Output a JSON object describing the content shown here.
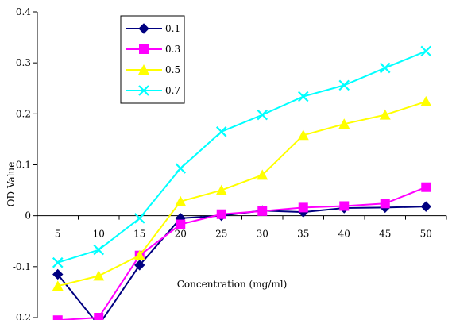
{
  "chart_data": {
    "type": "line",
    "title": "",
    "xlabel": "Concentration (mg/ml)",
    "ylabel": "OD Value",
    "x": [
      5,
      10,
      15,
      20,
      25,
      30,
      35,
      40,
      45,
      50
    ],
    "ylim": [
      -0.2,
      0.4
    ],
    "yticks": [
      "0.4",
      "0.3",
      "0.2",
      "0.1",
      "0",
      "-0.1",
      "-0.2"
    ],
    "ytick_values": [
      0.4,
      0.3,
      0.2,
      0.1,
      0,
      -0.1,
      -0.2
    ],
    "xticks": [
      "5",
      "10",
      "15",
      "20",
      "25",
      "30",
      "35",
      "40",
      "45",
      "50"
    ],
    "grid": false,
    "legend_position": "top-left",
    "series": [
      {
        "name": "0.1",
        "color": "#000080",
        "marker": "diamond",
        "values": [
          -0.115,
          -0.215,
          -0.097,
          -0.005,
          0.0,
          0.01,
          0.007,
          0.015,
          0.016,
          0.018
        ]
      },
      {
        "name": "0.3",
        "color": "#ff00ff",
        "marker": "square",
        "values": [
          -0.205,
          -0.2,
          -0.078,
          -0.017,
          0.003,
          0.009,
          0.016,
          0.019,
          0.024,
          0.056
        ]
      },
      {
        "name": "0.5",
        "color": "#ffff00",
        "marker": "triangle",
        "values": [
          -0.138,
          -0.118,
          -0.078,
          0.028,
          0.05,
          0.08,
          0.158,
          0.18,
          0.198,
          0.224
        ]
      },
      {
        "name": "0.7",
        "color": "#00ffff",
        "marker": "x",
        "values": [
          -0.092,
          -0.067,
          -0.005,
          0.093,
          0.165,
          0.198,
          0.234,
          0.256,
          0.29,
          0.323
        ]
      }
    ]
  }
}
